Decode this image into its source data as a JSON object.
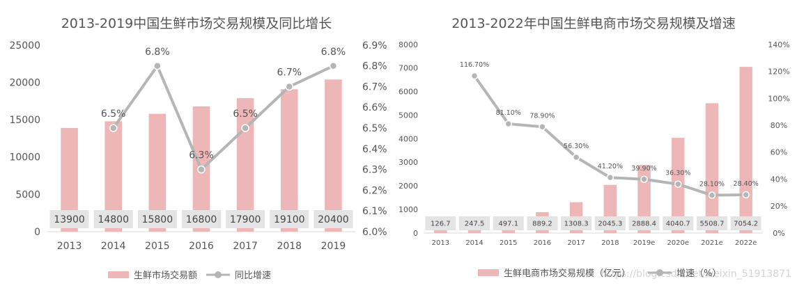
{
  "chart_data": [
    {
      "type": "bar",
      "title": "2013-2019中国生鲜市场交易规模及同比增长",
      "categories": [
        "2013",
        "2014",
        "2015",
        "2016",
        "2017",
        "2018",
        "2019"
      ],
      "series": [
        {
          "name": "生鲜市场交易额",
          "type": "bar",
          "axis": "left",
          "values": [
            13900,
            14800,
            15800,
            16800,
            17900,
            19100,
            20400
          ],
          "labels": [
            "13900",
            "14800",
            "15800",
            "16800",
            "17900",
            "19100",
            "20400"
          ]
        },
        {
          "name": "同比增速",
          "type": "line",
          "axis": "right",
          "values": [
            null,
            6.5,
            6.8,
            6.3,
            6.5,
            6.7,
            6.8
          ],
          "labels": [
            null,
            "6.5%",
            "6.8%",
            "6.3%",
            "6.5%",
            "6.7%",
            "6.8%"
          ]
        }
      ],
      "ylim": [
        0,
        25000
      ],
      "yticks": [
        "0",
        "5000",
        "10000",
        "15000",
        "20000",
        "25000"
      ],
      "y2lim": [
        6.0,
        6.9
      ],
      "y2ticks": [
        "6.0%",
        "6.1%",
        "6.2%",
        "6.3%",
        "6.4%",
        "6.5%",
        "6.6%",
        "6.7%",
        "6.8%",
        "6.9%"
      ],
      "legend": [
        "生鲜市场交易额",
        "同比增速"
      ],
      "legend_position": "bottom",
      "colors": {
        "bar": "#eeb7b7",
        "line": "#b5b5b5",
        "label_box": "#e4e4e4",
        "text": "#555555"
      }
    },
    {
      "type": "bar",
      "title": "2013-2022年中国生鲜电商市场交易规模及增速",
      "categories": [
        "2013",
        "2014",
        "2015",
        "2016",
        "2017",
        "2018",
        "2019e",
        "2020e",
        "2021e",
        "2022e"
      ],
      "series": [
        {
          "name": "生鲜电商市场交易规模（亿元）",
          "type": "bar",
          "axis": "left",
          "values": [
            126.7,
            247.5,
            497.1,
            889.2,
            1308.3,
            2045.3,
            2888.4,
            4040.7,
            5508.7,
            7054.2
          ],
          "labels": [
            "126.7",
            "247.5",
            "497.1",
            "889.2",
            "1308.3",
            "2045.3",
            "2888.4",
            "4040.7",
            "5508.7",
            "7054.2"
          ]
        },
        {
          "name": "增速（%）",
          "type": "line",
          "axis": "right",
          "values": [
            null,
            116.7,
            81.1,
            78.9,
            56.3,
            41.2,
            39.9,
            36.3,
            28.1,
            28.4
          ],
          "labels": [
            null,
            "116.70%",
            "81.10%",
            "78.90%",
            "56.30%",
            "41.20%",
            "39.90%",
            "36.30%",
            "28.10%",
            "28.40%"
          ]
        }
      ],
      "ylim": [
        0,
        8000
      ],
      "yticks": [
        "0",
        "1000",
        "2000",
        "3000",
        "4000",
        "5000",
        "6000",
        "7000",
        "8000"
      ],
      "y2lim": [
        0,
        140
      ],
      "y2ticks": [
        "0%",
        "20%",
        "40%",
        "60%",
        "80%",
        "100%",
        "120%",
        "140%"
      ],
      "legend": [
        "生鲜电商市场交易规模（亿元）",
        "增速（%）"
      ],
      "legend_position": "bottom",
      "colors": {
        "bar": "#eeb7b7",
        "line": "#b5b5b5",
        "label_box": "#e4e4e4",
        "text": "#555555"
      }
    }
  ],
  "watermark": "https://blog.csdn.net/weixin_51913871"
}
